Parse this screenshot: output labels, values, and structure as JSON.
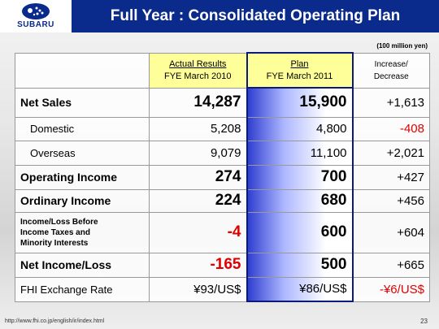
{
  "logo": "SUBARU",
  "title": "Full Year : Consolidated Operating Plan",
  "unit": "(100 million yen)",
  "table": {
    "columns": [
      [
        "Actual Results",
        "FYE March 2010"
      ],
      [
        "Plan",
        "FYE March 2011"
      ],
      [
        "Increase/",
        "Decrease"
      ]
    ],
    "rows": [
      [
        "Net Sales",
        "14,287",
        "15,900",
        "+1,613"
      ],
      [
        "Domestic",
        "5,208",
        "4,800",
        "-408"
      ],
      [
        "Overseas",
        "9,079",
        "11,100",
        "+2,021"
      ],
      [
        "Operating Income",
        "274",
        "700",
        "+427"
      ],
      [
        "Ordinary Income",
        "224",
        "680",
        "+456"
      ],
      [
        [
          "Income/Loss Before",
          "Income Taxes and",
          "Minority Interests"
        ],
        "-4",
        "600",
        "+604"
      ],
      [
        "Net Income/Loss",
        "-165",
        "500",
        "+665"
      ],
      [
        "FHI Exchange Rate",
        "¥93/US$",
        "¥86/US$",
        "-¥6/US$"
      ]
    ]
  },
  "footer": {
    "url": "http://www.fhi.co.jp/english/ir/index.html",
    "page": "23"
  }
}
